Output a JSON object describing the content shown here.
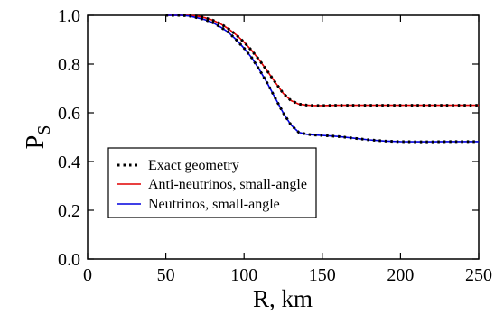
{
  "chart_data": {
    "type": "line",
    "xlabel": "R, km",
    "ylabel_main": "P",
    "ylabel_sub": "S",
    "xlim": [
      0,
      250
    ],
    "ylim": [
      0.0,
      1.0
    ],
    "x_ticks": [
      0,
      50,
      100,
      150,
      200,
      250
    ],
    "x_tick_labels": [
      "0",
      "50",
      "100",
      "150",
      "200",
      "250"
    ],
    "y_ticks": [
      0.0,
      0.2,
      0.4,
      0.6,
      0.8,
      1.0
    ],
    "y_tick_labels": [
      "0.0",
      "0.2",
      "0.4",
      "0.6",
      "0.8",
      "1.0"
    ],
    "grid": false,
    "legend_position": "bottom-left",
    "series": [
      {
        "name": "Anti-neutrinos, small-angle",
        "color": "#e00000",
        "style": "solid",
        "x": [
          50,
          60,
          65,
          70,
          75,
          80,
          85,
          90,
          95,
          100,
          105,
          110,
          115,
          120,
          125,
          130,
          135,
          140,
          145,
          150,
          160,
          170,
          180,
          190,
          200,
          210,
          220,
          230,
          240,
          250
        ],
        "y": [
          1.0,
          1.0,
          1.0,
          0.997,
          0.99,
          0.98,
          0.965,
          0.945,
          0.92,
          0.89,
          0.855,
          0.815,
          0.77,
          0.725,
          0.68,
          0.65,
          0.636,
          0.632,
          0.63,
          0.63,
          0.631,
          0.631,
          0.631,
          0.631,
          0.631,
          0.631,
          0.631,
          0.631,
          0.631,
          0.631
        ]
      },
      {
        "name": "Neutrinos, small-angle",
        "color": "#0000dd",
        "style": "solid",
        "x": [
          50,
          60,
          65,
          70,
          75,
          80,
          85,
          90,
          95,
          100,
          105,
          110,
          115,
          120,
          125,
          130,
          135,
          140,
          145,
          150,
          160,
          170,
          180,
          190,
          200,
          210,
          220,
          230,
          240,
          250
        ],
        "y": [
          1.0,
          1.0,
          0.997,
          0.99,
          0.982,
          0.97,
          0.952,
          0.93,
          0.9,
          0.865,
          0.825,
          0.775,
          0.72,
          0.66,
          0.6,
          0.55,
          0.52,
          0.512,
          0.509,
          0.507,
          0.503,
          0.496,
          0.489,
          0.484,
          0.482,
          0.481,
          0.481,
          0.482,
          0.482,
          0.482
        ]
      },
      {
        "name": "Exact geometry",
        "color": "#000000",
        "style": "dotted",
        "groups": [
          {
            "x": [
              50,
              55,
              60,
              65,
              70,
              75,
              80,
              85,
              90,
              95,
              100,
              105,
              110,
              115,
              120,
              125,
              130,
              135,
              140,
              145,
              150,
              160,
              170,
              180,
              190,
              200,
              210,
              220,
              230,
              240,
              250
            ],
            "y": [
              1.0,
              1.0,
              1.0,
              1.0,
              0.997,
              0.99,
              0.98,
              0.965,
              0.945,
              0.92,
              0.89,
              0.855,
              0.815,
              0.77,
              0.725,
              0.68,
              0.65,
              0.636,
              0.632,
              0.63,
              0.63,
              0.631,
              0.631,
              0.631,
              0.631,
              0.631,
              0.631,
              0.631,
              0.631,
              0.631,
              0.631
            ]
          },
          {
            "x": [
              50,
              55,
              60,
              65,
              70,
              75,
              80,
              85,
              90,
              95,
              100,
              105,
              110,
              115,
              120,
              125,
              130,
              135,
              140,
              145,
              150,
              160,
              170,
              180,
              190,
              200,
              210,
              220,
              230,
              240,
              250
            ],
            "y": [
              1.0,
              1.0,
              1.0,
              0.997,
              0.99,
              0.982,
              0.97,
              0.952,
              0.93,
              0.9,
              0.865,
              0.825,
              0.775,
              0.72,
              0.66,
              0.6,
              0.55,
              0.52,
              0.512,
              0.509,
              0.507,
              0.503,
              0.496,
              0.489,
              0.484,
              0.482,
              0.481,
              0.481,
              0.482,
              0.482,
              0.482
            ]
          }
        ]
      }
    ],
    "legend": [
      {
        "label": "Exact geometry",
        "color": "#000000",
        "style": "dotted"
      },
      {
        "label": "Anti-neutrinos, small-angle",
        "color": "#e00000",
        "style": "solid"
      },
      {
        "label": "Neutrinos, small-angle",
        "color": "#0000dd",
        "style": "solid"
      }
    ]
  }
}
